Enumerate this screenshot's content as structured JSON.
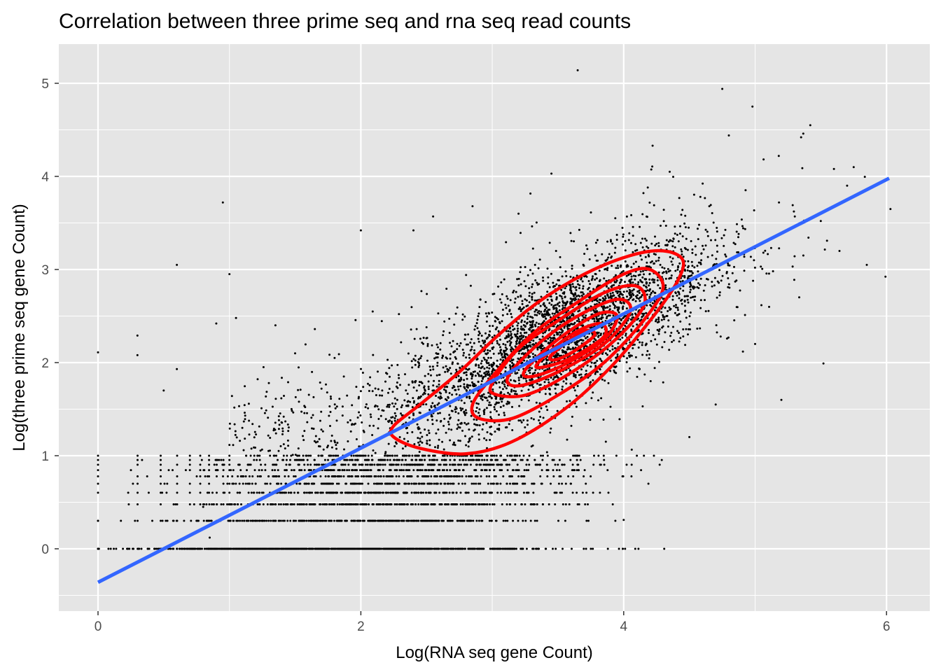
{
  "chart_data": {
    "type": "scatter",
    "title": "Correlation between three prime seq and rna seq read counts",
    "xlabel": "Log(RNA seq gene Count)",
    "ylabel": "Log(three prime seq gene Count)",
    "xlim": [
      -0.3,
      6.15
    ],
    "ylim": [
      -0.68,
      5.3
    ],
    "x_ticks": [
      0,
      2,
      4,
      6
    ],
    "x_tick_labels": [
      "0",
      "2",
      "4",
      "6"
    ],
    "y_ticks": [
      0,
      1,
      2,
      3,
      4,
      5
    ],
    "y_tick_labels": [
      "0",
      "1",
      "2",
      "3",
      "4",
      "5"
    ],
    "grid": true,
    "panel_background": "#e5e5e5",
    "point_color": "#000000",
    "regression_line": {
      "color": "#3366ff",
      "points": [
        [
          0.0,
          -0.36
        ],
        [
          6.02,
          3.98
        ]
      ]
    },
    "density_contours": {
      "color": "#ff0000",
      "levels": [
        [
          [
            2.25,
            1.32
          ],
          [
            2.45,
            1.55
          ],
          [
            2.75,
            1.9
          ],
          [
            3.05,
            2.3
          ],
          [
            3.35,
            2.65
          ],
          [
            3.7,
            2.95
          ],
          [
            4.05,
            3.15
          ],
          [
            4.3,
            3.2
          ],
          [
            4.45,
            3.1
          ],
          [
            4.4,
            2.85
          ],
          [
            4.2,
            2.45
          ],
          [
            3.9,
            1.95
          ],
          [
            3.55,
            1.5
          ],
          [
            3.15,
            1.15
          ],
          [
            2.8,
            1.02
          ],
          [
            2.45,
            1.08
          ],
          [
            2.25,
            1.2
          ]
        ],
        [
          [
            2.85,
            1.55
          ],
          [
            3.0,
            1.85
          ],
          [
            3.3,
            2.3
          ],
          [
            3.65,
            2.65
          ],
          [
            4.0,
            2.95
          ],
          [
            4.2,
            3.0
          ],
          [
            4.3,
            2.8
          ],
          [
            4.15,
            2.45
          ],
          [
            3.85,
            2.0
          ],
          [
            3.5,
            1.65
          ],
          [
            3.15,
            1.4
          ],
          [
            2.9,
            1.4
          ]
        ],
        [
          [
            3.0,
            1.78
          ],
          [
            3.2,
            2.15
          ],
          [
            3.5,
            2.45
          ],
          [
            3.85,
            2.75
          ],
          [
            4.1,
            2.82
          ],
          [
            4.15,
            2.6
          ],
          [
            3.9,
            2.2
          ],
          [
            3.55,
            1.85
          ],
          [
            3.25,
            1.65
          ],
          [
            3.02,
            1.66
          ]
        ],
        [
          [
            3.12,
            1.85
          ],
          [
            3.35,
            2.2
          ],
          [
            3.65,
            2.5
          ],
          [
            3.95,
            2.68
          ],
          [
            4.05,
            2.55
          ],
          [
            3.85,
            2.2
          ],
          [
            3.5,
            1.9
          ],
          [
            3.2,
            1.75
          ]
        ],
        [
          [
            3.25,
            1.92
          ],
          [
            3.5,
            2.25
          ],
          [
            3.8,
            2.52
          ],
          [
            3.95,
            2.5
          ],
          [
            3.85,
            2.25
          ],
          [
            3.55,
            1.98
          ],
          [
            3.3,
            1.85
          ]
        ],
        [
          [
            3.35,
            2.0
          ],
          [
            3.6,
            2.3
          ],
          [
            3.82,
            2.42
          ],
          [
            3.85,
            2.28
          ],
          [
            3.6,
            2.05
          ],
          [
            3.38,
            1.95
          ]
        ],
        [
          [
            3.45,
            2.08
          ],
          [
            3.68,
            2.33
          ],
          [
            3.78,
            2.3
          ],
          [
            3.62,
            2.12
          ],
          [
            3.48,
            2.03
          ]
        ]
      ]
    },
    "outliers": [
      [
        3.65,
        5.14
      ],
      [
        4.75,
        4.94
      ],
      [
        4.98,
        4.75
      ],
      [
        4.8,
        4.44
      ],
      [
        5.42,
        4.55
      ],
      [
        5.35,
        4.42
      ],
      [
        4.22,
        4.33
      ],
      [
        5.18,
        4.22
      ],
      [
        0.95,
        3.72
      ],
      [
        0.6,
        3.05
      ],
      [
        1.0,
        2.95
      ],
      [
        2.0,
        3.42
      ],
      [
        2.4,
        3.42
      ],
      [
        2.55,
        3.57
      ],
      [
        2.85,
        3.68
      ],
      [
        3.2,
        3.6
      ],
      [
        5.85,
        3.05
      ],
      [
        1.35,
        2.4
      ],
      [
        0.9,
        2.42
      ],
      [
        0.3,
        2.29
      ],
      [
        0.0,
        2.11
      ],
      [
        0.3,
        2.08
      ],
      [
        0.6,
        1.93
      ],
      [
        3.05,
        1.44
      ],
      [
        4.7,
        1.55
      ],
      [
        5.2,
        1.6
      ],
      [
        4.1,
        1.0
      ],
      [
        4.5,
        1.2
      ],
      [
        0.8,
        0.45
      ],
      [
        0.85,
        0.12
      ],
      [
        4.0,
        0.31
      ],
      [
        3.75,
        0.0
      ],
      [
        1.05,
        2.48
      ],
      [
        1.5,
        2.1
      ],
      [
        5.0,
        2.2
      ],
      [
        5.6,
        4.08
      ],
      [
        5.75,
        4.1
      ],
      [
        0.5,
        1.7
      ],
      [
        1.65,
        2.36
      ],
      [
        1.3,
        1.78
      ],
      [
        6.03,
        3.65
      ],
      [
        5.5,
        3.52
      ],
      [
        5.7,
        3.9
      ],
      [
        4.35,
        4.05
      ],
      [
        3.45,
        4.03
      ],
      [
        4.15,
        3.82
      ],
      [
        1.8,
        2.05
      ],
      [
        2.2,
        1.88
      ]
    ]
  }
}
